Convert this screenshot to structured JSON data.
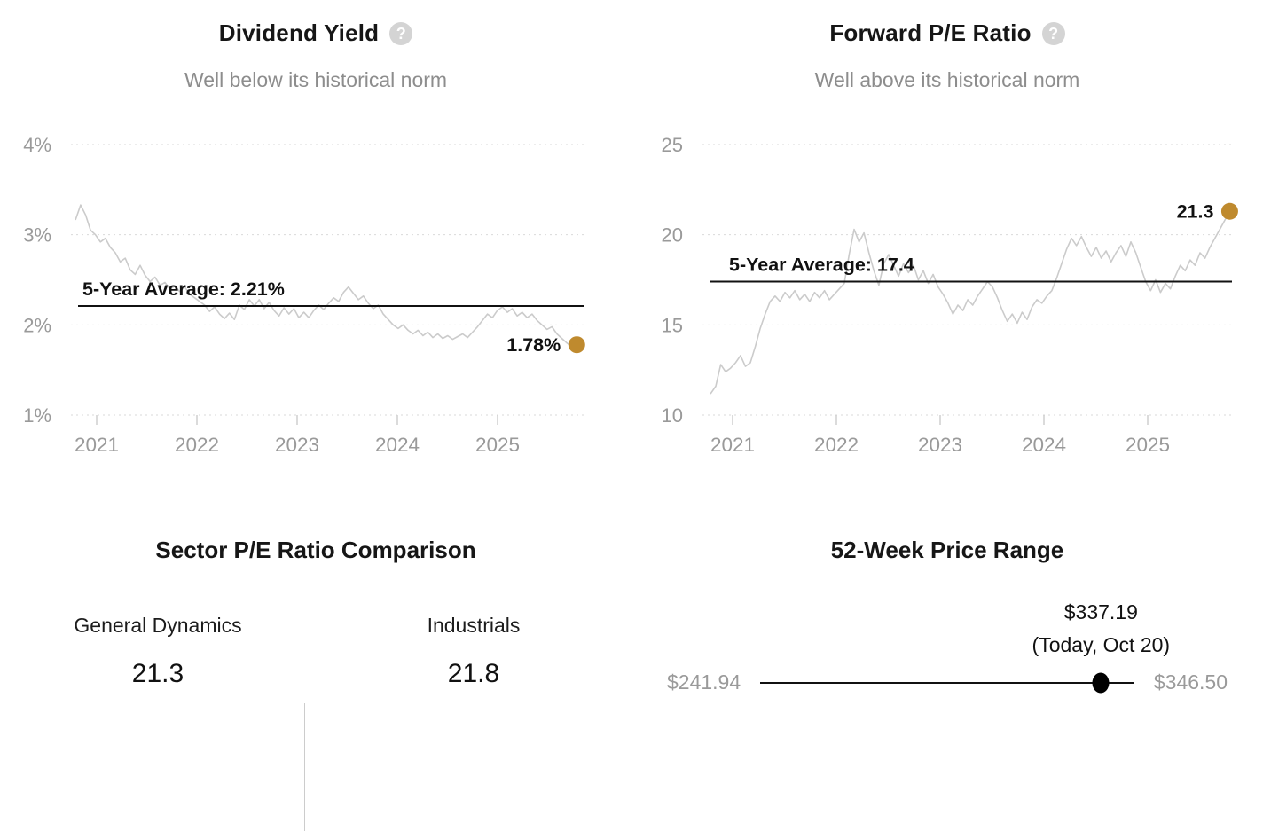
{
  "ui": {
    "help_glyph": "?"
  },
  "colors": {
    "accent_dot": "#bf8a2e",
    "series_line": "#cbcbcb",
    "average_line": "#111111",
    "grid_line": "#d9d9d9",
    "tick_line": "#cfcfcf",
    "axis_text": "#9a9a9a",
    "subtitle_text": "#8d8d8d",
    "value_text": "#111111",
    "marker": "#000000",
    "divider": "#cccccc"
  },
  "chart_data": [
    {
      "type": "line",
      "title": "Dividend Yield",
      "subtitle": "Well below its historical norm",
      "legend": "none",
      "grid": "dotted-horizontal",
      "ylim": [
        1,
        4
      ],
      "y_ticks": [
        {
          "label": "4%",
          "value": 4
        },
        {
          "label": "3%",
          "value": 3
        },
        {
          "label": "2%",
          "value": 2
        },
        {
          "label": "1%",
          "value": 1
        }
      ],
      "x_ticks": [
        {
          "label": "2021",
          "value": 2021
        },
        {
          "label": "2022",
          "value": 2022
        },
        {
          "label": "2023",
          "value": 2023
        },
        {
          "label": "2024",
          "value": 2024
        },
        {
          "label": "2025",
          "value": 2025
        }
      ],
      "average": {
        "value": 2.21,
        "label": "5-Year Average: 2.21%"
      },
      "current": {
        "value": 1.78,
        "label": "1.78%"
      },
      "series": [
        {
          "name": "Dividend Yield",
          "x_start": 2020.79,
          "x_end": 2025.79,
          "values": [
            3.17,
            3.33,
            3.22,
            3.05,
            3.0,
            2.92,
            2.96,
            2.86,
            2.8,
            2.7,
            2.74,
            2.61,
            2.56,
            2.66,
            2.55,
            2.48,
            2.53,
            2.44,
            2.47,
            2.4,
            2.43,
            2.37,
            2.42,
            2.34,
            2.3,
            2.26,
            2.22,
            2.15,
            2.2,
            2.12,
            2.07,
            2.13,
            2.06,
            2.22,
            2.17,
            2.28,
            2.21,
            2.28,
            2.18,
            2.25,
            2.16,
            2.1,
            2.19,
            2.12,
            2.18,
            2.08,
            2.14,
            2.08,
            2.16,
            2.22,
            2.17,
            2.24,
            2.3,
            2.26,
            2.36,
            2.42,
            2.35,
            2.28,
            2.32,
            2.24,
            2.18,
            2.22,
            2.12,
            2.06,
            2.0,
            1.96,
            2.0,
            1.94,
            1.9,
            1.94,
            1.88,
            1.92,
            1.86,
            1.9,
            1.85,
            1.88,
            1.84,
            1.87,
            1.9,
            1.86,
            1.92,
            1.98,
            2.05,
            2.12,
            2.08,
            2.16,
            2.2,
            2.14,
            2.18,
            2.1,
            2.14,
            2.08,
            2.12,
            2.05,
            2.0,
            1.95,
            1.98,
            1.9,
            1.85,
            1.8,
            1.76,
            1.78
          ]
        }
      ]
    },
    {
      "type": "line",
      "title": "Forward P/E Ratio",
      "subtitle": "Well above its historical norm",
      "legend": "none",
      "grid": "dotted-horizontal",
      "ylim": [
        10,
        25
      ],
      "y_ticks": [
        {
          "label": "25",
          "value": 25
        },
        {
          "label": "20",
          "value": 20
        },
        {
          "label": "15",
          "value": 15
        },
        {
          "label": "10",
          "value": 10
        }
      ],
      "x_ticks": [
        {
          "label": "2021",
          "value": 2021
        },
        {
          "label": "2022",
          "value": 2022
        },
        {
          "label": "2023",
          "value": 2023
        },
        {
          "label": "2024",
          "value": 2024
        },
        {
          "label": "2025",
          "value": 2025
        }
      ],
      "average": {
        "value": 17.4,
        "label": "5-Year Average: 17.4"
      },
      "current": {
        "value": 21.3,
        "label": "21.3"
      },
      "series": [
        {
          "name": "Forward P/E Ratio",
          "x_start": 2020.79,
          "x_end": 2025.79,
          "values": [
            11.2,
            11.6,
            12.8,
            12.4,
            12.6,
            12.9,
            13.3,
            12.7,
            12.9,
            13.8,
            14.8,
            15.6,
            16.3,
            16.6,
            16.3,
            16.8,
            16.5,
            16.9,
            16.4,
            16.7,
            16.3,
            16.8,
            16.5,
            16.9,
            16.4,
            16.7,
            17.0,
            17.3,
            18.9,
            20.3,
            19.6,
            20.1,
            19.0,
            18.0,
            17.2,
            18.4,
            18.9,
            18.3,
            17.7,
            18.4,
            17.9,
            18.3,
            17.5,
            18.0,
            17.3,
            17.8,
            17.1,
            16.7,
            16.2,
            15.6,
            16.1,
            15.8,
            16.4,
            16.1,
            16.6,
            17.0,
            17.4,
            17.1,
            16.5,
            15.8,
            15.2,
            15.6,
            15.1,
            15.7,
            15.3,
            16.0,
            16.4,
            16.2,
            16.6,
            16.9,
            17.6,
            18.4,
            19.2,
            19.8,
            19.4,
            19.9,
            19.3,
            18.8,
            19.3,
            18.7,
            19.1,
            18.5,
            19.0,
            19.4,
            18.8,
            19.6,
            19.0,
            18.2,
            17.4,
            16.9,
            17.5,
            16.8,
            17.3,
            17.0,
            17.7,
            18.3,
            18.0,
            18.6,
            18.3,
            19.0,
            18.7,
            19.3,
            19.8,
            20.3,
            20.8,
            21.3
          ]
        }
      ]
    },
    {
      "type": "table",
      "title": "Sector P/E Ratio Comparison",
      "columns": [
        {
          "label": "General Dynamics",
          "value": "21.3"
        },
        {
          "label": "Industrials",
          "value": "21.8"
        }
      ]
    },
    {
      "type": "range",
      "title": "52-Week Price Range",
      "min": 241.94,
      "max": 346.5,
      "current": 337.19,
      "min_label": "$241.94",
      "max_label": "$346.50",
      "current_label": "$337.19",
      "current_sublabel": "(Today, Oct 20)"
    }
  ]
}
